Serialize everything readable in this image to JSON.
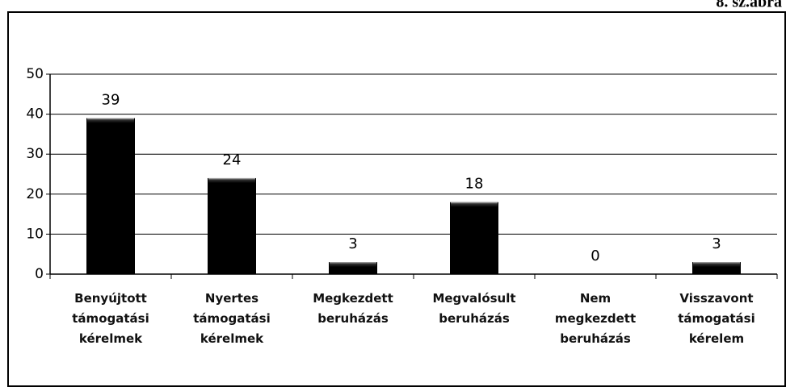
{
  "chart_data": {
    "type": "bar",
    "subtitle": "8. sz.ábra",
    "categories": [
      "Benyújtott támogatási kérelmek",
      "Nyertes támogatási kérelmek",
      "Megkezdett beruházás",
      "Megvalósult beruházás",
      "Nem megkezdett beruházás",
      "Visszavont támogatási kérelem"
    ],
    "values": [
      39,
      24,
      3,
      18,
      0,
      3
    ],
    "color": "#000000",
    "ylim": [
      0,
      50
    ],
    "yticks": [
      0,
      10,
      20,
      30,
      40,
      50
    ],
    "grid": true
  }
}
